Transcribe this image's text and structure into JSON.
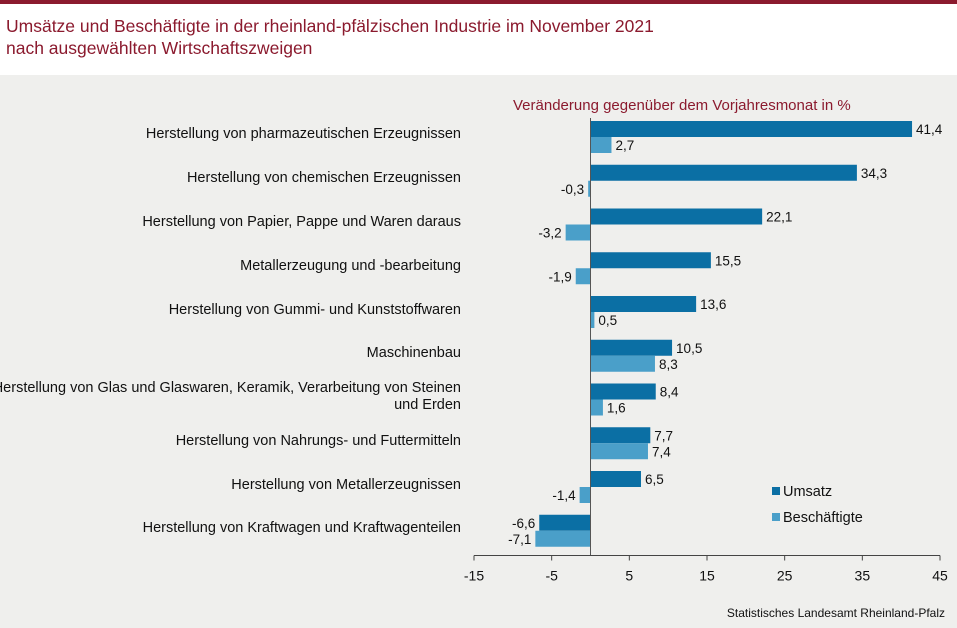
{
  "title_line1": "Umsätze und Beschäftigte in der rheinland-pfälzischen Industrie im November 2021",
  "title_line2": "nach ausgewählten Wirtschaftszweigen",
  "subtitle": "Veränderung gegenüber dem Vorjahresmonat in %",
  "source": "Statistisches Landesamt Rheinland-Pfalz",
  "colors": {
    "umsatz": "#0b6fa4",
    "beschaeftigte": "#4a9fc9",
    "title": "#8b1a2e"
  },
  "legend": {
    "umsatz": "Umsatz",
    "beschaeftigte": "Beschäftigte"
  },
  "categories": [
    "Herstellung von pharmazeutischen Erzeugnissen",
    "Herstellung von chemischen Erzeugnissen",
    "Herstellung von Papier, Pappe und Waren daraus",
    "Metallerzeugung und -bearbeitung",
    "Herstellung von Gummi- und Kunststoffwaren",
    "Maschinenbau",
    "Herstellung von Glas und Glaswaren, Keramik, Verarbeitung von Steinen und Erden",
    "Herstellung von Nahrungs- und Futtermitteln",
    "Herstellung von Metallerzeugnissen",
    "Herstellung von Kraftwagen und Kraftwagenteilen"
  ],
  "chart_data": {
    "type": "bar",
    "orientation": "horizontal",
    "title": "Umsätze und Beschäftigte in der rheinland-pfälzischen Industrie im November 2021 nach ausgewählten Wirtschaftszweigen",
    "subtitle": "Veränderung gegenüber dem Vorjahresmonat in %",
    "categories": [
      "Herstellung von pharmazeutischen Erzeugnissen",
      "Herstellung von chemischen Erzeugnissen",
      "Herstellung von Papier, Pappe und Waren daraus",
      "Metallerzeugung und -bearbeitung",
      "Herstellung von Gummi- und Kunststoffwaren",
      "Maschinenbau",
      "Herstellung von Glas und Glaswaren, Keramik, Verarbeitung von Steinen und Erden",
      "Herstellung von Nahrungs- und Futtermitteln",
      "Herstellung von Metallerzeugnissen",
      "Herstellung von Kraftwagen und Kraftwagenteilen"
    ],
    "series": [
      {
        "name": "Umsatz",
        "values": [
          41.4,
          34.3,
          22.1,
          15.5,
          13.6,
          10.5,
          8.4,
          7.7,
          6.5,
          -6.6
        ],
        "labels": [
          "41,4",
          "34,3",
          "22,1",
          "15,5",
          "13,6",
          "10,5",
          "8,4",
          "7,7",
          "6,5",
          "-6,6"
        ]
      },
      {
        "name": "Beschäftigte",
        "values": [
          2.7,
          -0.3,
          -3.2,
          -1.9,
          0.5,
          8.3,
          1.6,
          7.4,
          -1.4,
          -7.1
        ],
        "labels": [
          "2,7",
          "-0,3",
          "-3,2",
          "-1,9",
          "0,5",
          "8,3",
          "1,6",
          "7,4",
          "-1,4",
          "-7,1"
        ]
      }
    ],
    "xlim": [
      -15,
      45
    ],
    "xticks": [
      -15,
      -5,
      5,
      15,
      25,
      35,
      45
    ],
    "xticks_labels": [
      "-15",
      "-5",
      "5",
      "15",
      "25",
      "35",
      "45"
    ],
    "legend_position": "bottom-right",
    "grid": false
  }
}
